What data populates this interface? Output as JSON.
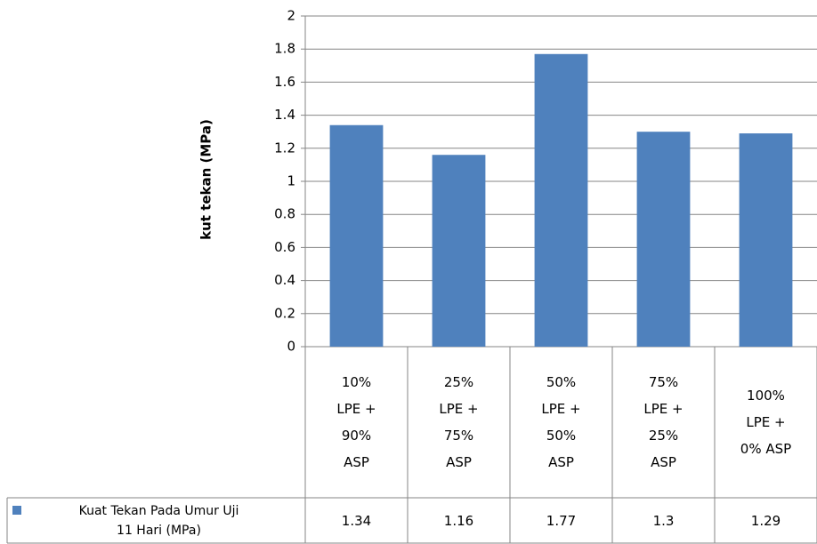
{
  "chart_data": {
    "type": "bar",
    "y_label": "kut tekan (MPa)",
    "categories": [
      "10%\nLPE +\n90%\nASP",
      "25%\nLPE +\n75%\nASP",
      "50%\nLPE +\n50%\nASP",
      "75%\nLPE +\n25%\nASP",
      "100%\nLPE +\n0% ASP"
    ],
    "series": [
      {
        "name": "Kuat Tekan Pada Umur Uji\n11 Hari (MPa)",
        "color": "#4f81bd",
        "values": [
          1.34,
          1.16,
          1.77,
          1.3,
          1.29
        ]
      }
    ],
    "ylim": [
      0,
      2
    ],
    "yticks": [
      0,
      0.2,
      0.4,
      0.6,
      0.8,
      1,
      1.2,
      1.4,
      1.6,
      1.8,
      2
    ],
    "grid": true,
    "data_table": true
  }
}
